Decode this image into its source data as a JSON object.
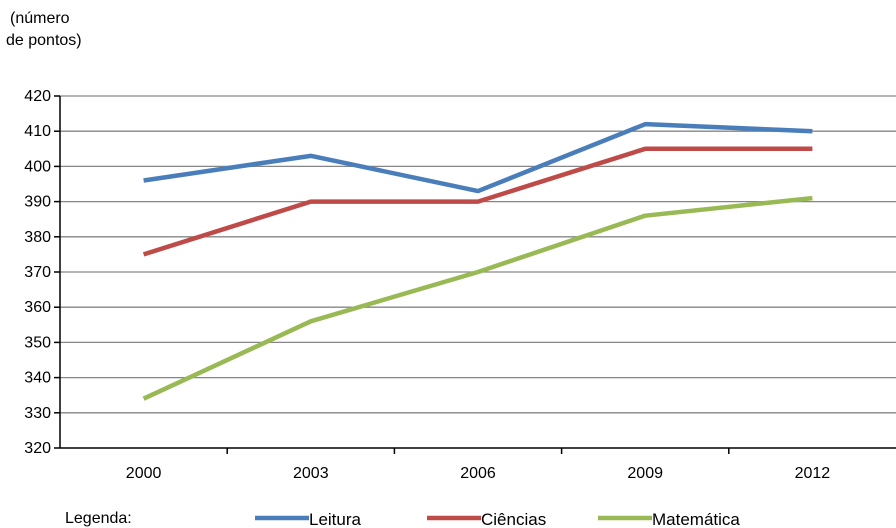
{
  "chart_data": {
    "type": "line",
    "ylabel_line1": "(número",
    "ylabel_line2": "de pontos)",
    "categories": [
      "2000",
      "2003",
      "2006",
      "2009",
      "2012"
    ],
    "ylim": [
      320,
      420
    ],
    "yticks": [
      320,
      330,
      340,
      350,
      360,
      370,
      380,
      390,
      400,
      410,
      420
    ],
    "grid": true,
    "legend_title": "Legenda:",
    "legend_position": "bottom",
    "series": [
      {
        "name": "Leitura",
        "color": "#4a7ebb",
        "values": [
          396,
          403,
          393,
          412,
          410
        ]
      },
      {
        "name": "Ciências",
        "color": "#be4b48",
        "values": [
          375,
          390,
          390,
          405,
          405
        ]
      },
      {
        "name": "Matemática",
        "color": "#98b954",
        "values": [
          334,
          356,
          370,
          386,
          391
        ]
      }
    ]
  }
}
